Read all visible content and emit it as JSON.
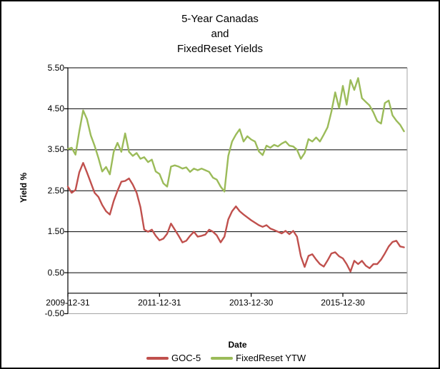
{
  "chart_data": {
    "type": "line",
    "title_lines": [
      "5-Year Canadas",
      "and",
      "FixedReset Yields"
    ],
    "xlabel": "Date",
    "ylabel": "Yield %",
    "ylim": [
      -0.5,
      5.5
    ],
    "grid": "horizontal",
    "legend_position": "bottom",
    "ytick_labels": [
      "5.50",
      "4.50",
      "3.50",
      "2.50",
      "1.50",
      "0.50",
      "-0.50"
    ],
    "ytick_values": [
      5.5,
      4.5,
      3.5,
      2.5,
      1.5,
      0.5,
      -0.5
    ],
    "xtick_labels": [
      "2009-12-31",
      "2011-12-31",
      "2013-12-30",
      "2015-12-30"
    ],
    "xtick_month_index": [
      0,
      24,
      48,
      72
    ],
    "colors": {
      "goc5": "#C0504D",
      "fixedreset": "#9BBB59",
      "gridline": "#000000",
      "axis": "#000000",
      "plot_border": "#a6a6a6",
      "outer_border": "#000000",
      "background": "#ffffff"
    },
    "x_months": [
      "2009-12",
      "2010-01",
      "2010-02",
      "2010-03",
      "2010-04",
      "2010-05",
      "2010-06",
      "2010-07",
      "2010-08",
      "2010-09",
      "2010-10",
      "2010-11",
      "2010-12",
      "2011-01",
      "2011-02",
      "2011-03",
      "2011-04",
      "2011-05",
      "2011-06",
      "2011-07",
      "2011-08",
      "2011-09",
      "2011-10",
      "2011-11",
      "2011-12",
      "2012-01",
      "2012-02",
      "2012-03",
      "2012-04",
      "2012-05",
      "2012-06",
      "2012-07",
      "2012-08",
      "2012-09",
      "2012-10",
      "2012-11",
      "2012-12",
      "2013-01",
      "2013-02",
      "2013-03",
      "2013-04",
      "2013-05",
      "2013-06",
      "2013-07",
      "2013-08",
      "2013-09",
      "2013-10",
      "2013-11",
      "2013-12",
      "2014-01",
      "2014-02",
      "2014-03",
      "2014-04",
      "2014-05",
      "2014-06",
      "2014-07",
      "2014-08",
      "2014-09",
      "2014-10",
      "2014-11",
      "2014-12",
      "2015-01",
      "2015-02",
      "2015-03",
      "2015-04",
      "2015-05",
      "2015-06",
      "2015-07",
      "2015-08",
      "2015-09",
      "2015-10",
      "2015-11",
      "2015-12",
      "2016-01",
      "2016-02",
      "2016-03",
      "2016-04",
      "2016-05",
      "2016-06",
      "2016-07",
      "2016-08",
      "2016-09",
      "2016-10",
      "2016-11",
      "2016-12",
      "2017-01",
      "2017-02",
      "2017-03",
      "2017-04"
    ],
    "series": [
      {
        "name": "GOC-5",
        "color": "#C0504D",
        "values": [
          2.6,
          2.45,
          2.52,
          2.95,
          3.18,
          2.95,
          2.7,
          2.45,
          2.35,
          2.15,
          2.0,
          1.92,
          2.25,
          2.5,
          2.72,
          2.74,
          2.8,
          2.65,
          2.45,
          2.1,
          1.55,
          1.5,
          1.55,
          1.4,
          1.29,
          1.33,
          1.45,
          1.7,
          1.55,
          1.4,
          1.24,
          1.28,
          1.4,
          1.5,
          1.38,
          1.4,
          1.43,
          1.55,
          1.5,
          1.41,
          1.24,
          1.38,
          1.8,
          2.0,
          2.12,
          2.0,
          1.92,
          1.85,
          1.78,
          1.72,
          1.66,
          1.62,
          1.66,
          1.58,
          1.54,
          1.5,
          1.46,
          1.52,
          1.44,
          1.52,
          1.38,
          0.9,
          0.64,
          0.91,
          0.95,
          0.82,
          0.71,
          0.65,
          0.8,
          0.97,
          1.0,
          0.9,
          0.85,
          0.71,
          0.53,
          0.79,
          0.71,
          0.79,
          0.67,
          0.61,
          0.71,
          0.71,
          0.82,
          0.97,
          1.14,
          1.25,
          1.28,
          1.14,
          1.12
        ]
      },
      {
        "name": "FixedReset YTW",
        "color": "#9BBB59",
        "values": [
          3.52,
          3.55,
          3.38,
          3.95,
          4.46,
          4.25,
          3.85,
          3.6,
          3.3,
          2.97,
          3.08,
          2.9,
          3.45,
          3.67,
          3.45,
          3.9,
          3.45,
          3.35,
          3.42,
          3.28,
          3.32,
          3.2,
          3.26,
          2.97,
          2.91,
          2.68,
          2.6,
          3.09,
          3.12,
          3.09,
          3.04,
          3.07,
          2.96,
          3.04,
          3.0,
          3.04,
          3.0,
          2.96,
          2.82,
          2.77,
          2.6,
          2.48,
          3.35,
          3.7,
          3.87,
          4.0,
          3.7,
          3.83,
          3.75,
          3.7,
          3.46,
          3.37,
          3.6,
          3.55,
          3.62,
          3.58,
          3.65,
          3.7,
          3.6,
          3.58,
          3.5,
          3.28,
          3.42,
          3.76,
          3.7,
          3.8,
          3.7,
          3.87,
          4.05,
          4.43,
          4.9,
          4.52,
          5.06,
          4.6,
          5.2,
          4.96,
          5.25,
          4.76,
          4.67,
          4.58,
          4.41,
          4.2,
          4.14,
          4.64,
          4.7,
          4.34,
          4.21,
          4.11,
          3.95
        ]
      }
    ]
  }
}
